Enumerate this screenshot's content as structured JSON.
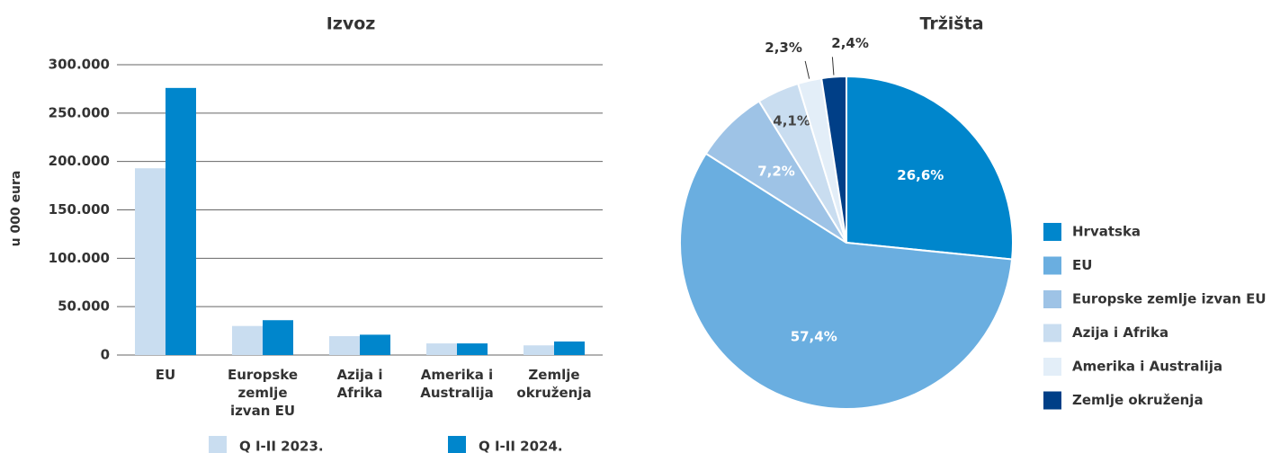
{
  "chart_data": [
    {
      "type": "bar",
      "title": "Izvoz",
      "y_label": "u 000 eura",
      "categories": [
        "EU",
        "Europske zemlje izvan EU",
        "Azija i Afrika",
        "Amerika i Australija",
        "Zemlje okruženja"
      ],
      "series": [
        {
          "name": "Q I-II 2023.",
          "color": "#c9ddf0",
          "values": [
            193000,
            30000,
            19500,
            12000,
            10000
          ]
        },
        {
          "name": "Q I-II 2024.",
          "color": "#0086cc",
          "values": [
            276000,
            36000,
            21000,
            12000,
            14000
          ]
        }
      ],
      "ylim": [
        0,
        300000
      ],
      "yticks": [
        0,
        {
          "value": 50000,
          "label": "50.000"
        },
        {
          "value": 100000,
          "label": "100.000"
        },
        {
          "value": 150000,
          "label": "150.000"
        },
        {
          "value": 200000,
          "label": "200.000"
        },
        {
          "value": 250000,
          "label": "250.000"
        },
        {
          "value": 300000,
          "label": "300.000"
        }
      ],
      "grid": true,
      "legend": "bottom"
    },
    {
      "type": "pie",
      "title": "Tržišta",
      "categories": [
        "Hrvatska",
        "EU",
        "Europske zemlje izvan EU",
        "Azija i Afrika",
        "Amerika i Australija",
        "Zemlje okruženja"
      ],
      "values": [
        26.6,
        57.4,
        7.2,
        4.1,
        2.3,
        2.4
      ],
      "value_labels": [
        "26,6%",
        "57,4%",
        "7,2%",
        "4,1%",
        "2,3%",
        "2,4%"
      ],
      "colors": [
        "#0086cc",
        "#6aaee0",
        "#9ec3e6",
        "#c9ddf0",
        "#e3eef8",
        "#003f87"
      ],
      "legend": "right"
    }
  ]
}
